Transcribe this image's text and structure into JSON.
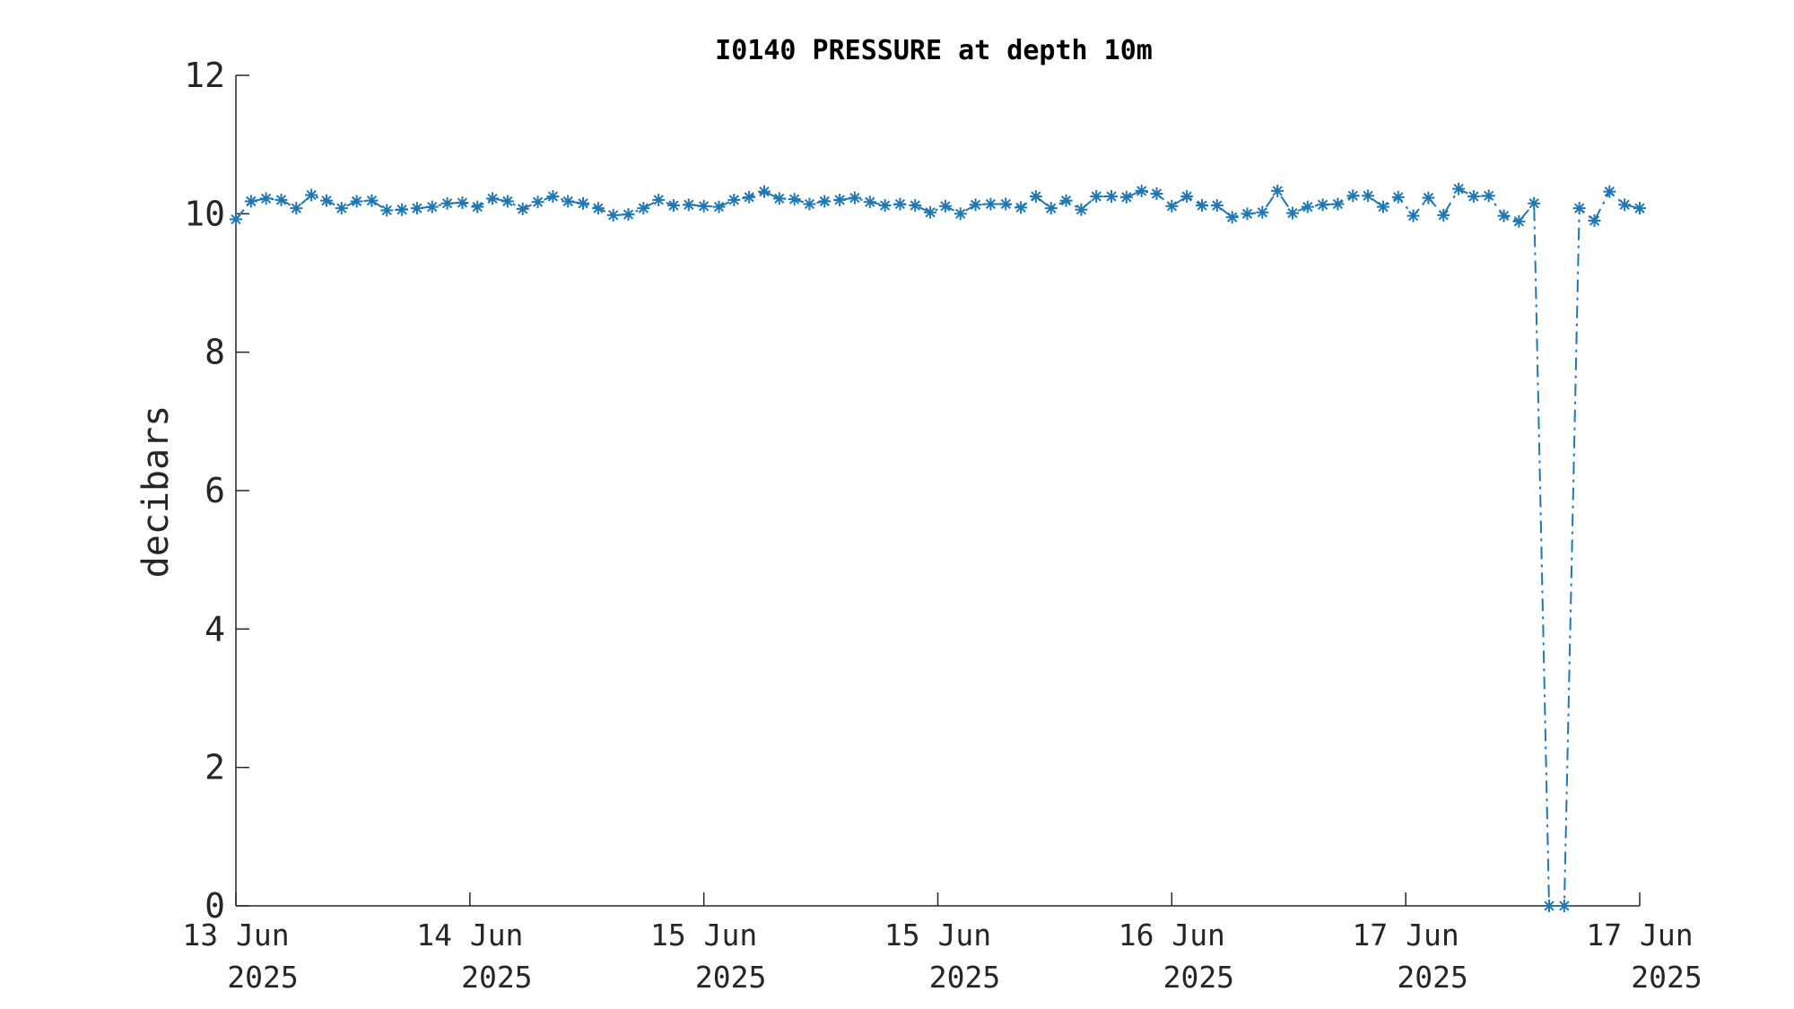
{
  "chart_data": {
    "type": "line",
    "title": "I0140 PRESSURE at depth 10m",
    "xlabel": "",
    "ylabel": "decibars",
    "ylim": [
      0,
      12
    ],
    "yticks": [
      "0",
      "2",
      "4",
      "6",
      "8",
      "10",
      "12"
    ],
    "xticks": [
      {
        "line1": "13 Jun",
        "line2": "2025"
      },
      {
        "line1": "14 Jun",
        "line2": "2025"
      },
      {
        "line1": "15 Jun",
        "line2": "2025"
      },
      {
        "line1": "15 Jun",
        "line2": "2025"
      },
      {
        "line1": "16 Jun",
        "line2": "2025"
      },
      {
        "line1": "17 Jun",
        "line2": "2025"
      },
      {
        "line1": "17 Jun",
        "line2": "2025"
      }
    ],
    "grid": false,
    "legend": "none",
    "line_style": "dash-dot with asterisk markers",
    "color": "#1f77b4",
    "series": [
      {
        "values": [
          9.92,
          10.18,
          10.22,
          10.2,
          10.08,
          10.27,
          10.19,
          10.08,
          10.18,
          10.19,
          10.05,
          10.06,
          10.08,
          10.1,
          10.15,
          10.16,
          10.1,
          10.22,
          10.18,
          10.07,
          10.17,
          10.25,
          10.18,
          10.15,
          10.08,
          9.98,
          9.99,
          10.08,
          10.2,
          10.12,
          10.13,
          10.11,
          10.1,
          10.2,
          10.24,
          10.32,
          10.22,
          10.21,
          10.14,
          10.18,
          10.2,
          10.23,
          10.17,
          10.12,
          10.14,
          10.12,
          10.02,
          10.11,
          10.0,
          10.13,
          10.14,
          10.14,
          10.09,
          10.25,
          10.08,
          10.19,
          10.06,
          10.25,
          10.25,
          10.24,
          10.33,
          10.29,
          10.11,
          10.25,
          10.12,
          10.12,
          9.95,
          10.0,
          10.02,
          10.33,
          10.01,
          10.1,
          10.13,
          10.14,
          10.26,
          10.26,
          10.1,
          10.24,
          9.97,
          10.23,
          9.98,
          10.36,
          10.25,
          10.26,
          9.97,
          9.89,
          10.15,
          0.0,
          0.0,
          10.08,
          9.9,
          10.32,
          10.13,
          10.08
        ]
      }
    ]
  }
}
